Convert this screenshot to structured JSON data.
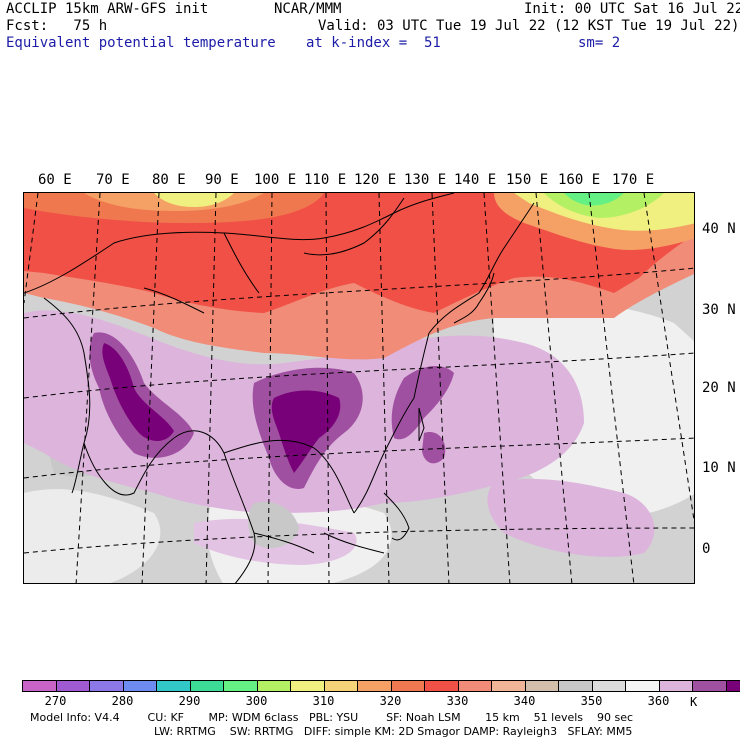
{
  "header": {
    "left_line1": "ACCLIP 15km ARW-GFS init",
    "center_line1": "NCAR/MMM",
    "right_line1": "Init: 00 UTC Sat 16 Jul 22",
    "left_line2": "Fcst:   75 h",
    "right_line2": "Valid: 03 UTC Tue 19 Jul 22 (12 KST Tue 19 Jul 22)",
    "field_label": "Equivalent potential temperature",
    "level_label": "at k-index =  51",
    "smooth_label": "sm= 2"
  },
  "map": {
    "lon_labels": [
      "60 E",
      "70 E",
      "80 E",
      "90 E",
      "100 E",
      "110 E",
      "120 E",
      "130 E",
      "140 E",
      "150 E",
      "160 E",
      "170 E"
    ],
    "lat_labels": [
      "40 N",
      "30 N",
      "20 N",
      "10 N",
      "0"
    ]
  },
  "colorbar": {
    "colors": [
      "#c864c8",
      "#a05ad2",
      "#8c78e6",
      "#6e8cf0",
      "#32c8c8",
      "#3cdc96",
      "#64f082",
      "#b4f064",
      "#f0f080",
      "#f5d278",
      "#f5a064",
      "#f07850",
      "#f05046",
      "#f08c78",
      "#f0b496",
      "#d2beaa",
      "#c8c8c8",
      "#dcdcdc",
      "#f5f5f5",
      "#dcb4dc",
      "#a050a0",
      "#780078"
    ],
    "labels": [
      "270",
      "280",
      "290",
      "300",
      "310",
      "320",
      "330",
      "340",
      "350",
      "360"
    ],
    "unit": "K"
  },
  "footer": {
    "line1": "Model Info: V4.4        CU: KF       MP: WDM 6class   PBL: YSU        SF: Noah LSM       15 km    51 levels    90 sec",
    "line2": "LW: RRTMG    SW: RRTMG   DIFF: simple KM: 2D Smagor DAMP: Rayleigh3   SFLAY: MM5"
  }
}
